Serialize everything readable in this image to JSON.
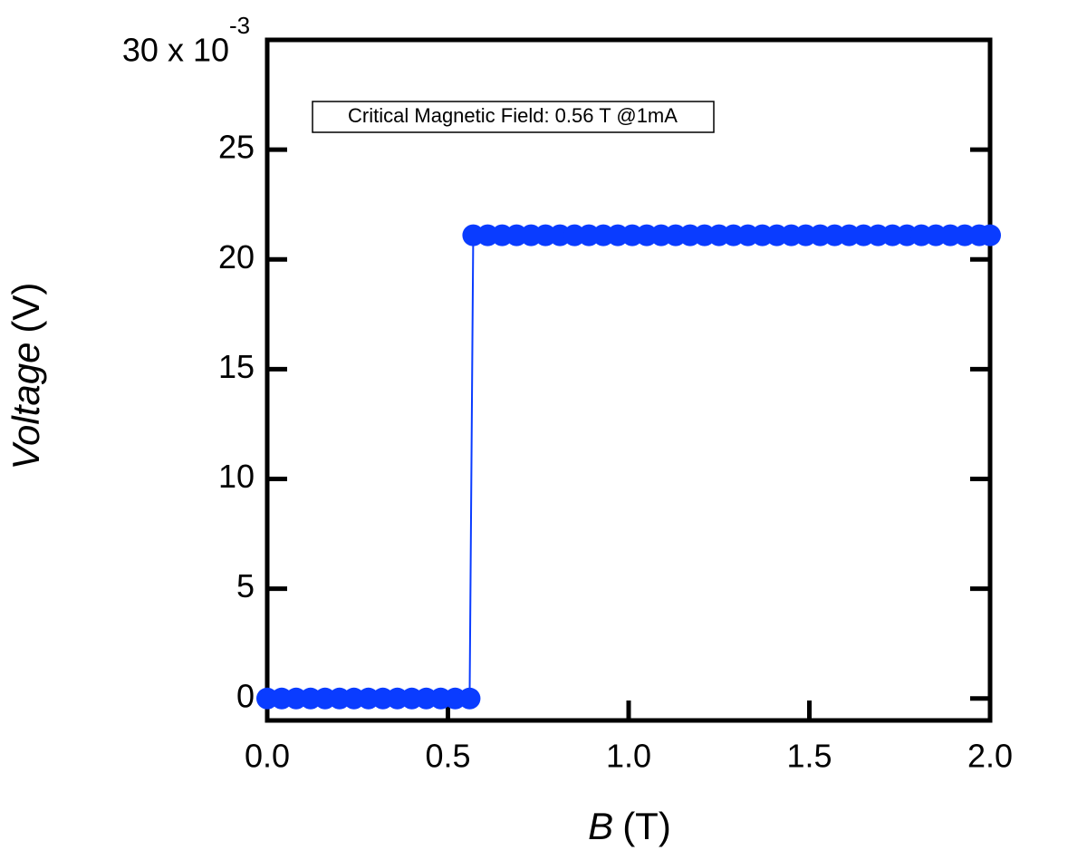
{
  "chart_data": {
    "type": "line",
    "annotation": "Critical Magnetic Field: 0.56 T @1mA",
    "xlabel": {
      "symbol": "B",
      "unit": "(T)"
    },
    "ylabel": {
      "symbol": "Voltage",
      "unit": "(V)"
    },
    "y_exponent": "-3",
    "xlim": [
      0,
      2
    ],
    "ylim": [
      -1,
      30
    ],
    "xticks": [
      {
        "value": 0,
        "label": "0.0"
      },
      {
        "value": 0.5,
        "label": "0.5"
      },
      {
        "value": 1,
        "label": "1.0"
      },
      {
        "value": 1.5,
        "label": "1.5"
      },
      {
        "value": 2,
        "label": "2.0"
      }
    ],
    "yticks": [
      0,
      5,
      10,
      15,
      20,
      25,
      {
        "value": 30,
        "label": "30 x 10"
      }
    ],
    "series": [
      {
        "color": "#0a3cff",
        "x": [
          0,
          0.04,
          0.08,
          0.12,
          0.16,
          0.2,
          0.24,
          0.28,
          0.32,
          0.36,
          0.4,
          0.44,
          0.48,
          0.52,
          0.56,
          0.57,
          0.61,
          0.65,
          0.69,
          0.73,
          0.77,
          0.81,
          0.85,
          0.89,
          0.93,
          0.97,
          1.01,
          1.05,
          1.09,
          1.13,
          1.17,
          1.21,
          1.25,
          1.29,
          1.33,
          1.37,
          1.41,
          1.45,
          1.49,
          1.53,
          1.57,
          1.61,
          1.65,
          1.69,
          1.73,
          1.77,
          1.81,
          1.85,
          1.89,
          1.93,
          1.97,
          2.0
        ],
        "values": [
          0,
          0,
          0,
          0,
          0,
          0,
          0,
          0,
          0,
          0,
          0,
          0,
          0,
          0,
          0,
          21.1,
          21.1,
          21.1,
          21.1,
          21.1,
          21.1,
          21.1,
          21.1,
          21.1,
          21.1,
          21.1,
          21.1,
          21.1,
          21.1,
          21.1,
          21.1,
          21.1,
          21.1,
          21.1,
          21.1,
          21.1,
          21.1,
          21.1,
          21.1,
          21.1,
          21.1,
          21.1,
          21.1,
          21.1,
          21.1,
          21.1,
          21.1,
          21.1,
          21.1,
          21.1,
          21.1,
          21.1
        ]
      }
    ]
  }
}
